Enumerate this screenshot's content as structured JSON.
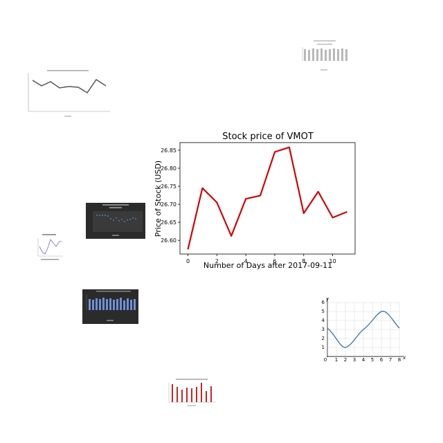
{
  "chart_data": {
    "type": "line",
    "title": "Stock price of VMOT",
    "xlabel": "Number of Days after 2017-09-11",
    "ylabel": "Price of Stock (USD)",
    "x": [
      0,
      1,
      2,
      3,
      4,
      5,
      6,
      7,
      8,
      9,
      10,
      11
    ],
    "series": [
      {
        "values": [
          26.575,
          26.745,
          26.705,
          26.612,
          26.715,
          26.724,
          26.845,
          26.858,
          26.675,
          26.735,
          26.663,
          26.679
        ]
      }
    ],
    "xlim": [
      -0.55,
      11.55
    ],
    "ylim": [
      26.562,
      26.871
    ],
    "xticks": [
      0,
      2,
      4,
      6,
      8,
      10
    ],
    "yticks": [
      26.6,
      26.65,
      26.7,
      26.75,
      26.8,
      26.85
    ],
    "ytick_labels": [
      "26.60",
      "26.65",
      "26.70",
      "26.75",
      "26.80",
      "26.85"
    ],
    "line_color": "#d40000",
    "grid": false,
    "legend": "none"
  },
  "thumbnails": [
    {
      "type": "line",
      "style": "light"
    },
    {
      "type": "bar",
      "style": "light"
    },
    {
      "type": "scatter",
      "style": "dark"
    },
    {
      "type": "line",
      "style": "light"
    },
    {
      "type": "bar",
      "style": "dark"
    },
    {
      "type": "line",
      "style": "grid"
    },
    {
      "type": "bar",
      "style": "light"
    }
  ],
  "math_plot": {
    "xticks": [
      "1",
      "2",
      "3",
      "4",
      "5",
      "6",
      "7",
      "8"
    ],
    "yticks": [
      "1",
      "2",
      "3",
      "4",
      "5",
      "6"
    ],
    "origin": "0",
    "xaxis_letter": "x",
    "yaxis_letter": "y"
  }
}
